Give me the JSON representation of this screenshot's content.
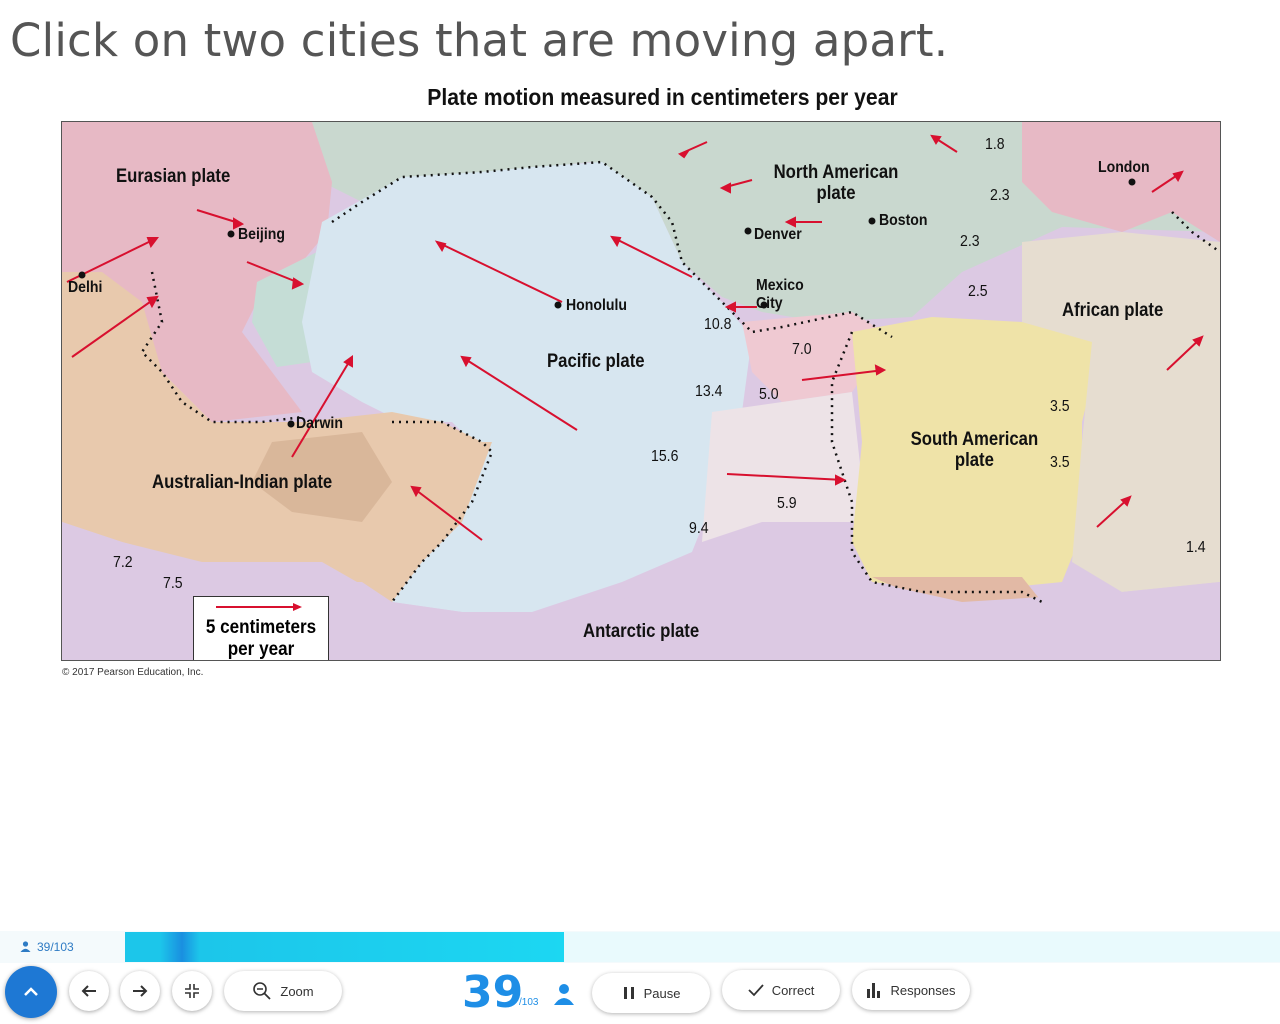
{
  "question": "Click on two cities that are moving apart.",
  "map": {
    "title": "Plate motion measured in centimeters per year",
    "copyright": "© 2017 Pearson Education, Inc.",
    "plates": {
      "eurasian": "Eurasian plate",
      "north_american": "North American plate",
      "pacific": "Pacific plate",
      "african": "African plate",
      "south_american": "South American plate",
      "australian_indian": "Australian-Indian plate",
      "antarctic": "Antarctic plate"
    },
    "cities": {
      "beijing": "Beijing",
      "delhi": "Delhi",
      "honolulu": "Honolulu",
      "denver": "Denver",
      "boston": "Boston",
      "mexico_city": "Mexico City",
      "london": "London",
      "darwin": "Darwin"
    },
    "rates": [
      "1.8",
      "2.3",
      "2.3",
      "2.5",
      "10.8",
      "7.0",
      "13.4",
      "5.0",
      "15.6",
      "5.9",
      "9.4",
      "3.5",
      "3.5",
      "1.4",
      "7.2",
      "7.5"
    ],
    "legend": "5 centimeters per year",
    "colors": {
      "eurasian": "#e7b9c5",
      "north_american": "#c9d8cf",
      "pacific": "#d7e6f0",
      "african": "#e6ddd0",
      "south_american": "#efe3a8",
      "australian": "#e8c9ad",
      "antarctic": "#dcc9e3",
      "arrow": "#d8102f"
    }
  },
  "footer": {
    "responses_count": "39/103",
    "current": "39",
    "total": "/103",
    "progress_fraction": 0.38,
    "zoom_label": "Zoom",
    "pause_label": "Pause",
    "correct_label": "Correct",
    "responses_label": "Responses"
  }
}
